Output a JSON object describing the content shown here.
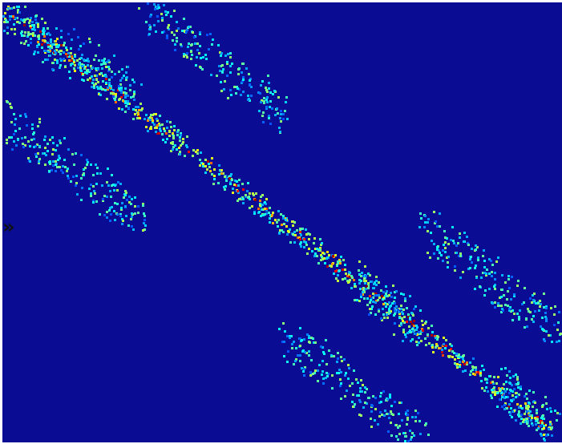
{
  "toggle": {
    "label": "»"
  }
}
